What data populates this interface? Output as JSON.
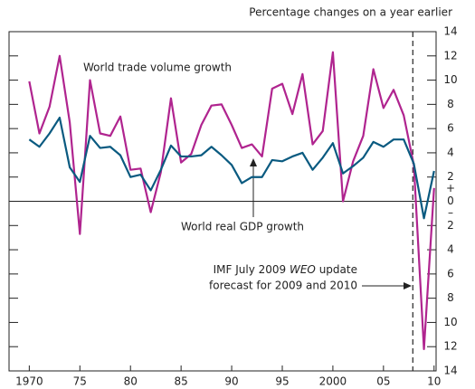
{
  "chart_data": {
    "type": "line",
    "subtitle": "Percentage changes on a year earlier",
    "x": [
      1970,
      1971,
      1972,
      1973,
      1974,
      1975,
      1976,
      1977,
      1978,
      1979,
      1980,
      1981,
      1982,
      1983,
      1984,
      1985,
      1986,
      1987,
      1988,
      1989,
      1990,
      1991,
      1992,
      1993,
      1994,
      1995,
      1996,
      1997,
      1998,
      1999,
      2000,
      2001,
      2002,
      2003,
      2004,
      2005,
      2006,
      2007,
      2008,
      2009,
      2010
    ],
    "series": [
      {
        "name": "World trade volume growth",
        "color": "#b0248f",
        "values": [
          9.9,
          5.6,
          7.8,
          12,
          6.5,
          -2.7,
          10,
          5.6,
          5.4,
          7,
          2.6,
          2.7,
          -0.9,
          2.4,
          8.5,
          3.2,
          3.9,
          6.3,
          7.9,
          8,
          6.3,
          4.4,
          4.7,
          3.7,
          9.3,
          9.7,
          7.2,
          10.5,
          4.7,
          5.8,
          12.3,
          0,
          3.3,
          5.4,
          10.9,
          7.7,
          9.2,
          7.1,
          3,
          -12.2,
          1.1
        ]
      },
      {
        "name": "World real GDP growth",
        "color": "#0a5a80",
        "values": [
          5.1,
          4.5,
          5.6,
          6.9,
          2.8,
          1.6,
          5.4,
          4.4,
          4.5,
          3.8,
          2,
          2.2,
          0.9,
          2.6,
          4.6,
          3.7,
          3.7,
          3.8,
          4.5,
          3.8,
          3,
          1.5,
          2,
          2,
          3.4,
          3.3,
          3.7,
          4,
          2.6,
          3.6,
          4.8,
          2.3,
          2.9,
          3.6,
          4.9,
          4.5,
          5.1,
          5.1,
          3.1,
          -1.4,
          2.5
        ]
      }
    ],
    "annotation": {
      "parts": [
        "IMF July 2009 ",
        "WEO",
        " update"
      ],
      "line2": "forecast for 2009 and 2010"
    },
    "sign_labels": [
      "+",
      "–"
    ],
    "forecast_x": 2007.9,
    "xlim": [
      1968,
      2010.2
    ],
    "xticks": [
      {
        "value": 1970,
        "label": "1970"
      },
      {
        "value": 1975,
        "label": "75"
      },
      {
        "value": 1980,
        "label": "80"
      },
      {
        "value": 1985,
        "label": "85"
      },
      {
        "value": 1990,
        "label": "90"
      },
      {
        "value": 1995,
        "label": "95"
      },
      {
        "value": 2000,
        "label": "2000"
      },
      {
        "value": 2005,
        "label": "05"
      },
      {
        "value": 2010,
        "label": "10"
      }
    ],
    "ylim": [
      -14,
      14
    ],
    "yticks": [
      {
        "value": -14,
        "label": "14"
      },
      {
        "value": -12,
        "label": "12"
      },
      {
        "value": -10,
        "label": "10"
      },
      {
        "value": -8,
        "label": "8"
      },
      {
        "value": -6,
        "label": "6"
      },
      {
        "value": -4,
        "label": "4"
      },
      {
        "value": -2,
        "label": "2"
      },
      0,
      2,
      4,
      6,
      8,
      10,
      12,
      14
    ]
  }
}
